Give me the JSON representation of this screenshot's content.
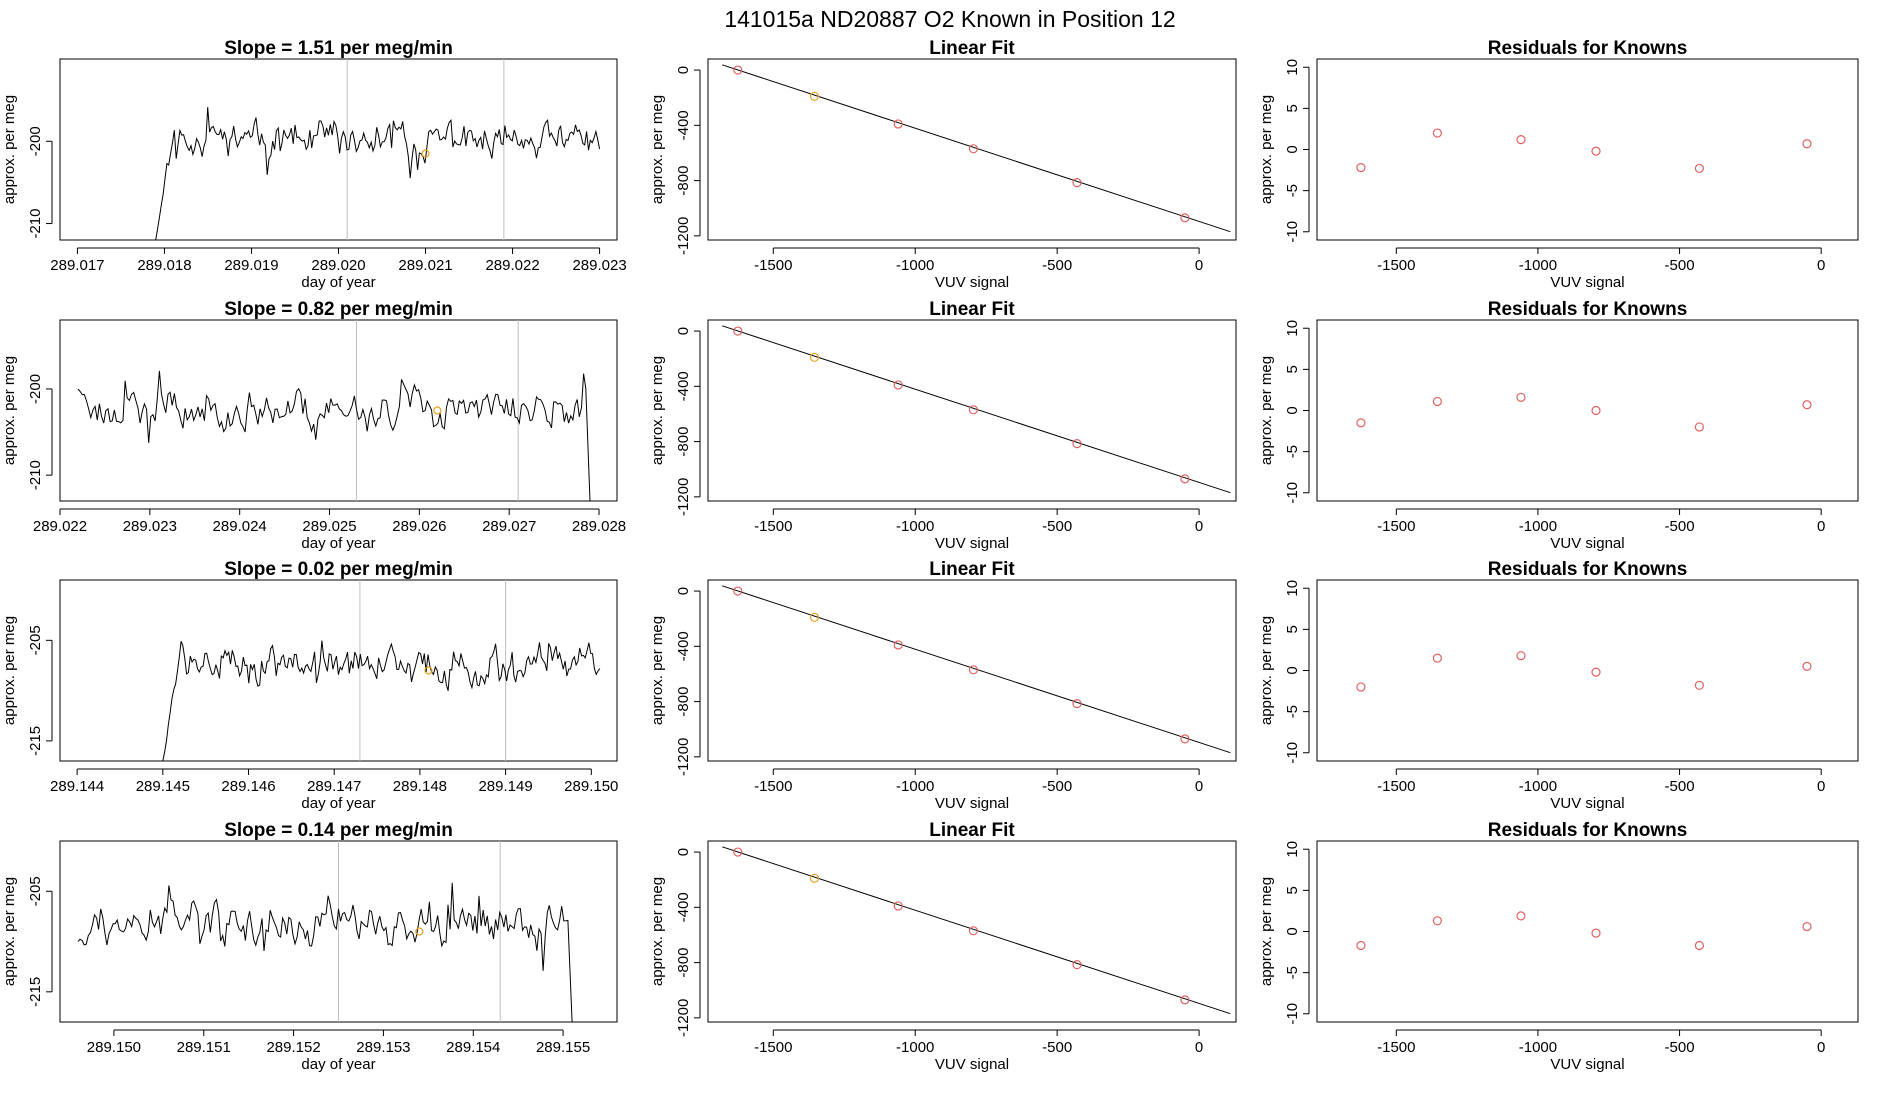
{
  "figure": {
    "suptitle": "141015a     ND20887   O2 Known in Position  12",
    "colors": {
      "line": "#000000",
      "vline": "#bebebe",
      "red": "#e06060",
      "orange": "#e6a020"
    }
  },
  "chart_data": [
    {
      "type": "line",
      "row": 1,
      "col": 1,
      "title": "Slope =  1.51  per meg/min",
      "xlabel": "day of year",
      "ylabel": "approx. per meg",
      "xlim": [
        289.0168,
        289.0232
      ],
      "ylim": [
        -212,
        -190
      ],
      "xticks": [
        289.017,
        289.018,
        289.019,
        289.02,
        289.021,
        289.022,
        289.023
      ],
      "xtick_labels": [
        "289.017",
        "289.018",
        "289.019",
        "289.020",
        "289.021",
        "289.022",
        "289.023"
      ],
      "yticks": [
        -200,
        -210
      ],
      "ytick_labels": [
        "-200",
        "-210"
      ],
      "x_start": 289.0179,
      "x_end": 289.023,
      "vlines": [
        289.0201,
        289.0219
      ],
      "highlight_point": {
        "x": 289.021,
        "y": -201.5
      },
      "seed": 11,
      "start_y": -212.0,
      "base": -199.8,
      "amp": 2.4
    },
    {
      "type": "scatter",
      "row": 1,
      "col": 2,
      "title": "Linear Fit",
      "xlabel": "VUV signal",
      "ylabel": "approx. per meg",
      "xlim": [
        -1730,
        130
      ],
      "ylim": [
        -1230,
        80
      ],
      "xticks": [
        -1500,
        -1000,
        -500,
        0
      ],
      "xtick_labels": [
        "-1500",
        "-1000",
        "-500",
        "0"
      ],
      "yticks": [
        0,
        -400,
        -800,
        -1200
      ],
      "ytick_labels": [
        "0",
        "-400",
        "-800",
        "-1200"
      ],
      "fit_line": {
        "x": [
          -1680,
          110
        ],
        "y": [
          38,
          -1170
        ]
      },
      "points": [
        {
          "x": -1625,
          "y": 0,
          "color": "red"
        },
        {
          "x": -1355,
          "y": -190,
          "color": "orange"
        },
        {
          "x": -1060,
          "y": -390,
          "color": "red"
        },
        {
          "x": -795,
          "y": -570,
          "color": "red"
        },
        {
          "x": -430,
          "y": -815,
          "color": "red"
        },
        {
          "x": -50,
          "y": -1070,
          "color": "red"
        }
      ]
    },
    {
      "type": "scatter",
      "row": 1,
      "col": 3,
      "title": "Residuals for Knowns",
      "xlabel": "VUV signal",
      "ylabel": "approx. per meg",
      "xlim": [
        -1780,
        130
      ],
      "ylim": [
        -11,
        11
      ],
      "xticks": [
        -1500,
        -1000,
        -500,
        0
      ],
      "xtick_labels": [
        "-1500",
        "-1000",
        "-500",
        "0"
      ],
      "yticks": [
        10,
        5,
        0,
        -5,
        -10
      ],
      "ytick_labels": [
        "10",
        "5",
        "0",
        "-5",
        "-10"
      ],
      "points": [
        {
          "x": -1625,
          "y": -2.2,
          "color": "red"
        },
        {
          "x": -1355,
          "y": 2.0,
          "color": "red"
        },
        {
          "x": -1060,
          "y": 1.2,
          "color": "red"
        },
        {
          "x": -795,
          "y": -0.2,
          "color": "red"
        },
        {
          "x": -430,
          "y": -2.3,
          "color": "red"
        },
        {
          "x": -50,
          "y": 0.7,
          "color": "red"
        }
      ]
    },
    {
      "type": "line",
      "row": 2,
      "col": 1,
      "title": "Slope =  0.82  per meg/min",
      "xlabel": "day of year",
      "ylabel": "approx. per meg",
      "xlim": [
        289.022,
        289.0282
      ],
      "ylim": [
        -213,
        -192
      ],
      "xticks": [
        289.022,
        289.023,
        289.024,
        289.025,
        289.026,
        289.027,
        289.028
      ],
      "xtick_labels": [
        "289.022",
        "289.023",
        "289.024",
        "289.025",
        "289.026",
        "289.027",
        "289.028"
      ],
      "yticks": [
        -200,
        -210
      ],
      "ytick_labels": [
        "-200",
        "-210"
      ],
      "x_start": 289.0222,
      "x_end": 289.0279,
      "vlines": [
        289.0253,
        289.0271
      ],
      "highlight_point": {
        "x": 289.0262,
        "y": -202.5
      },
      "seed": 23,
      "start_y": -200.0,
      "base": -202.3,
      "amp": 2.6,
      "end_y": -213
    },
    {
      "type": "scatter",
      "row": 2,
      "col": 2,
      "title": "Linear Fit",
      "xlabel": "VUV signal",
      "ylabel": "approx. per meg",
      "xlim": [
        -1730,
        130
      ],
      "ylim": [
        -1230,
        80
      ],
      "xticks": [
        -1500,
        -1000,
        -500,
        0
      ],
      "xtick_labels": [
        "-1500",
        "-1000",
        "-500",
        "0"
      ],
      "yticks": [
        0,
        -400,
        -800,
        -1200
      ],
      "ytick_labels": [
        "0",
        "-400",
        "-800",
        "-1200"
      ],
      "fit_line": {
        "x": [
          -1680,
          110
        ],
        "y": [
          38,
          -1170
        ]
      },
      "points": [
        {
          "x": -1625,
          "y": 0,
          "color": "red"
        },
        {
          "x": -1355,
          "y": -190,
          "color": "orange"
        },
        {
          "x": -1060,
          "y": -390,
          "color": "red"
        },
        {
          "x": -795,
          "y": -570,
          "color": "red"
        },
        {
          "x": -430,
          "y": -815,
          "color": "red"
        },
        {
          "x": -50,
          "y": -1070,
          "color": "red"
        }
      ]
    },
    {
      "type": "scatter",
      "row": 2,
      "col": 3,
      "title": "Residuals for Knowns",
      "xlabel": "VUV signal",
      "ylabel": "approx. per meg",
      "xlim": [
        -1780,
        130
      ],
      "ylim": [
        -11,
        11
      ],
      "xticks": [
        -1500,
        -1000,
        -500,
        0
      ],
      "xtick_labels": [
        "-1500",
        "-1000",
        "-500",
        "0"
      ],
      "yticks": [
        10,
        5,
        0,
        -5,
        -10
      ],
      "ytick_labels": [
        "10",
        "5",
        "0",
        "-5",
        "-10"
      ],
      "points": [
        {
          "x": -1625,
          "y": -1.5,
          "color": "red"
        },
        {
          "x": -1355,
          "y": 1.1,
          "color": "red"
        },
        {
          "x": -1060,
          "y": 1.6,
          "color": "red"
        },
        {
          "x": -795,
          "y": 0.0,
          "color": "red"
        },
        {
          "x": -430,
          "y": -2.0,
          "color": "red"
        },
        {
          "x": -50,
          "y": 0.7,
          "color": "red"
        }
      ]
    },
    {
      "type": "line",
      "row": 3,
      "col": 1,
      "title": "Slope =  0.02  per meg/min",
      "xlabel": "day of year",
      "ylabel": "approx. per meg",
      "xlim": [
        289.1438,
        289.1503
      ],
      "ylim": [
        -217,
        -199
      ],
      "xticks": [
        289.144,
        289.145,
        289.146,
        289.147,
        289.148,
        289.149,
        289.15
      ],
      "xtick_labels": [
        "289.144",
        "289.145",
        "289.146",
        "289.147",
        "289.148",
        "289.149",
        "289.150"
      ],
      "yticks": [
        -205,
        -215
      ],
      "ytick_labels": [
        "-205",
        "-215"
      ],
      "x_start": 289.145,
      "x_end": 289.1501,
      "vlines": [
        289.1473,
        289.149
      ],
      "highlight_point": {
        "x": 289.1481,
        "y": -208.0
      },
      "seed": 37,
      "start_y": -217.0,
      "base": -207.5,
      "amp": 2.2
    },
    {
      "type": "scatter",
      "row": 3,
      "col": 2,
      "title": "Linear Fit",
      "xlabel": "VUV signal",
      "ylabel": "approx. per meg",
      "xlim": [
        -1730,
        130
      ],
      "ylim": [
        -1230,
        80
      ],
      "xticks": [
        -1500,
        -1000,
        -500,
        0
      ],
      "xtick_labels": [
        "-1500",
        "-1000",
        "-500",
        "0"
      ],
      "yticks": [
        0,
        -400,
        -800,
        -1200
      ],
      "ytick_labels": [
        "0",
        "-400",
        "-800",
        "-1200"
      ],
      "fit_line": {
        "x": [
          -1680,
          110
        ],
        "y": [
          38,
          -1170
        ]
      },
      "points": [
        {
          "x": -1625,
          "y": 0,
          "color": "red"
        },
        {
          "x": -1355,
          "y": -190,
          "color": "orange"
        },
        {
          "x": -1060,
          "y": -390,
          "color": "red"
        },
        {
          "x": -795,
          "y": -570,
          "color": "red"
        },
        {
          "x": -430,
          "y": -815,
          "color": "red"
        },
        {
          "x": -50,
          "y": -1070,
          "color": "red"
        }
      ]
    },
    {
      "type": "scatter",
      "row": 3,
      "col": 3,
      "title": "Residuals for Knowns",
      "xlabel": "VUV signal",
      "ylabel": "approx. per meg",
      "xlim": [
        -1780,
        130
      ],
      "ylim": [
        -11,
        11
      ],
      "xticks": [
        -1500,
        -1000,
        -500,
        0
      ],
      "xtick_labels": [
        "-1500",
        "-1000",
        "-500",
        "0"
      ],
      "yticks": [
        10,
        5,
        0,
        -5,
        -10
      ],
      "ytick_labels": [
        "10",
        "5",
        "0",
        "-5",
        "-10"
      ],
      "points": [
        {
          "x": -1625,
          "y": -2.0,
          "color": "red"
        },
        {
          "x": -1355,
          "y": 1.5,
          "color": "red"
        },
        {
          "x": -1060,
          "y": 1.8,
          "color": "red"
        },
        {
          "x": -795,
          "y": -0.2,
          "color": "red"
        },
        {
          "x": -430,
          "y": -1.8,
          "color": "red"
        },
        {
          "x": -50,
          "y": 0.5,
          "color": "red"
        }
      ]
    },
    {
      "type": "line",
      "row": 4,
      "col": 1,
      "title": "Slope =  0.14  per meg/min",
      "xlabel": "day of year",
      "ylabel": "approx. per meg",
      "xlim": [
        289.1494,
        289.1556
      ],
      "ylim": [
        -218,
        -200
      ],
      "xticks": [
        289.15,
        289.151,
        289.152,
        289.153,
        289.154,
        289.155
      ],
      "xtick_labels": [
        "289.150",
        "289.151",
        "289.152",
        "289.153",
        "289.154",
        "289.155"
      ],
      "yticks": [
        -205,
        -215
      ],
      "ytick_labels": [
        "-205",
        "-215"
      ],
      "x_start": 289.1496,
      "x_end": 289.1551,
      "vlines": [
        289.1525,
        289.1543
      ],
      "highlight_point": {
        "x": 289.1534,
        "y": -209.0
      },
      "seed": 53,
      "start_y": -210.0,
      "base": -208.3,
      "amp": 2.4,
      "end_y": -218
    },
    {
      "type": "scatter",
      "row": 4,
      "col": 2,
      "title": "Linear Fit",
      "xlabel": "VUV signal",
      "ylabel": "approx. per meg",
      "xlim": [
        -1730,
        130
      ],
      "ylim": [
        -1230,
        80
      ],
      "xticks": [
        -1500,
        -1000,
        -500,
        0
      ],
      "xtick_labels": [
        "-1500",
        "-1000",
        "-500",
        "0"
      ],
      "yticks": [
        0,
        -400,
        -800,
        -1200
      ],
      "ytick_labels": [
        "0",
        "-400",
        "-800",
        "-1200"
      ],
      "fit_line": {
        "x": [
          -1680,
          110
        ],
        "y": [
          38,
          -1170
        ]
      },
      "points": [
        {
          "x": -1625,
          "y": 0,
          "color": "red"
        },
        {
          "x": -1355,
          "y": -190,
          "color": "orange"
        },
        {
          "x": -1060,
          "y": -390,
          "color": "red"
        },
        {
          "x": -795,
          "y": -570,
          "color": "red"
        },
        {
          "x": -430,
          "y": -815,
          "color": "red"
        },
        {
          "x": -50,
          "y": -1070,
          "color": "red"
        }
      ]
    },
    {
      "type": "scatter",
      "row": 4,
      "col": 3,
      "title": "Residuals for Knowns",
      "xlabel": "VUV signal",
      "ylabel": "approx. per meg",
      "xlim": [
        -1780,
        130
      ],
      "ylim": [
        -11,
        11
      ],
      "xticks": [
        -1500,
        -1000,
        -500,
        0
      ],
      "xtick_labels": [
        "-1500",
        "-1000",
        "-500",
        "0"
      ],
      "yticks": [
        10,
        5,
        0,
        -5,
        -10
      ],
      "ytick_labels": [
        "10",
        "5",
        "0",
        "-5",
        "-10"
      ],
      "points": [
        {
          "x": -1625,
          "y": -1.7,
          "color": "red"
        },
        {
          "x": -1355,
          "y": 1.3,
          "color": "red"
        },
        {
          "x": -1060,
          "y": 1.9,
          "color": "red"
        },
        {
          "x": -795,
          "y": -0.2,
          "color": "red"
        },
        {
          "x": -430,
          "y": -1.7,
          "color": "red"
        },
        {
          "x": -50,
          "y": 0.6,
          "color": "red"
        }
      ]
    }
  ]
}
